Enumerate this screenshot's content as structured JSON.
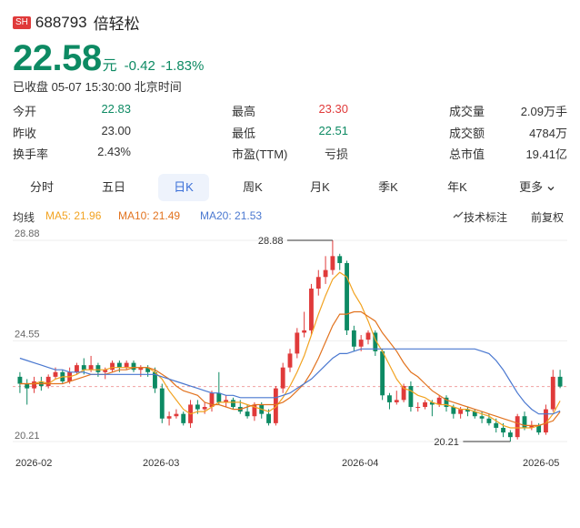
{
  "header": {
    "exchange": "SH",
    "code": "688793",
    "name": "倍轻松"
  },
  "quote": {
    "price": "22.58",
    "unit": "元",
    "change": "-0.42",
    "change_pct": "-1.83%",
    "status": "已收盘 05-07 15:30:00 北京时间",
    "colors": {
      "up": "#e03a3a",
      "down": "#0d8a63"
    }
  },
  "stats": [
    {
      "label": "今开",
      "value": "22.83",
      "tone": "green"
    },
    {
      "label": "最高",
      "value": "23.30",
      "tone": "red"
    },
    {
      "label": "成交量",
      "value": "2.09万手",
      "tone": "dark"
    },
    {
      "label": "昨收",
      "value": "23.00",
      "tone": "dark"
    },
    {
      "label": "最低",
      "value": "22.51",
      "tone": "green"
    },
    {
      "label": "成交额",
      "value": "4784万",
      "tone": "dark"
    },
    {
      "label": "换手率",
      "value": "2.43%",
      "tone": "dark"
    },
    {
      "label": "市盈(TTM)",
      "value": "亏损",
      "tone": "dark"
    },
    {
      "label": "总市值",
      "value": "19.41亿",
      "tone": "dark"
    }
  ],
  "tabs": [
    {
      "label": "分时",
      "active": false
    },
    {
      "label": "五日",
      "active": false
    },
    {
      "label": "日K",
      "active": true
    },
    {
      "label": "周K",
      "active": false
    },
    {
      "label": "月K",
      "active": false
    },
    {
      "label": "季K",
      "active": false
    },
    {
      "label": "年K",
      "active": false
    },
    {
      "label": "更多",
      "active": false,
      "icon": "chevron-down-icon"
    }
  ],
  "indicators": {
    "title": "均线",
    "ma5": "MA5: 21.96",
    "ma10": "MA10: 21.49",
    "ma20": "MA20: 21.53",
    "ma_colors": {
      "ma5": "#f2a321",
      "ma10": "#e2731f",
      "ma20": "#4a78d0"
    },
    "tech_label": "技术标注",
    "tech_icon": "pencil-icon",
    "adjust_label": "前复权"
  },
  "chart_data": {
    "type": "candlestick",
    "ylim": [
      20.21,
      28.88
    ],
    "y_ticks": [
      "28.88",
      "24.55",
      "20.21"
    ],
    "x_ticks": [
      "2026-02",
      "2026-03",
      "2026-04",
      "2026-05"
    ],
    "max_marker": "28.88",
    "min_marker": "20.21",
    "last_close_line": 22.58,
    "candles": [
      [
        23.0,
        22.7,
        23.2,
        22.3
      ],
      [
        22.7,
        22.5,
        22.9,
        21.8
      ],
      [
        22.5,
        22.8,
        23.0,
        22.3
      ],
      [
        22.8,
        22.6,
        23.0,
        22.4
      ],
      [
        22.6,
        23.0,
        23.1,
        22.5
      ],
      [
        23.0,
        23.2,
        23.4,
        22.9
      ],
      [
        23.2,
        22.8,
        23.3,
        22.7
      ],
      [
        22.8,
        23.2,
        23.4,
        22.7
      ],
      [
        23.2,
        23.5,
        23.6,
        23.1
      ],
      [
        23.5,
        23.3,
        23.8,
        23.1
      ],
      [
        23.3,
        23.5,
        23.9,
        23.2
      ],
      [
        23.5,
        23.2,
        23.6,
        23.0
      ],
      [
        23.2,
        23.3,
        23.4,
        22.9
      ],
      [
        23.3,
        23.6,
        23.7,
        23.2
      ],
      [
        23.6,
        23.4,
        23.7,
        23.2
      ],
      [
        23.4,
        23.6,
        23.7,
        23.3
      ],
      [
        23.6,
        23.3,
        23.7,
        23.2
      ],
      [
        23.3,
        23.4,
        23.5,
        23.0
      ],
      [
        23.4,
        23.2,
        23.5,
        23.0
      ],
      [
        23.2,
        22.5,
        23.4,
        22.3
      ],
      [
        22.5,
        21.2,
        22.7,
        21.0
      ],
      [
        21.2,
        21.3,
        21.5,
        20.9
      ],
      [
        21.3,
        21.4,
        21.6,
        21.2
      ],
      [
        21.4,
        21.0,
        21.5,
        20.9
      ],
      [
        21.0,
        21.8,
        22.0,
        20.8
      ],
      [
        21.8,
        21.6,
        22.0,
        21.4
      ],
      [
        21.6,
        21.7,
        21.9,
        21.4
      ],
      [
        21.7,
        22.3,
        22.4,
        21.5
      ],
      [
        22.3,
        21.9,
        23.2,
        21.8
      ],
      [
        21.9,
        22.0,
        22.2,
        21.7
      ],
      [
        22.0,
        21.7,
        22.1,
        21.6
      ],
      [
        21.7,
        21.5,
        22.0,
        21.4
      ],
      [
        21.5,
        21.3,
        21.8,
        21.2
      ],
      [
        21.3,
        21.8,
        21.9,
        21.1
      ],
      [
        21.8,
        21.4,
        21.9,
        21.2
      ],
      [
        21.4,
        21.0,
        21.6,
        20.9
      ],
      [
        21.0,
        22.5,
        22.6,
        20.9
      ],
      [
        22.5,
        23.4,
        23.6,
        22.3
      ],
      [
        23.4,
        24.0,
        24.2,
        23.2
      ],
      [
        24.0,
        24.9,
        25.1,
        23.8
      ],
      [
        24.9,
        25.0,
        25.8,
        24.7
      ],
      [
        25.0,
        26.8,
        27.0,
        24.8
      ],
      [
        26.8,
        27.3,
        27.6,
        26.5
      ],
      [
        27.3,
        27.6,
        28.2,
        27.0
      ],
      [
        27.6,
        28.2,
        28.88,
        27.4
      ],
      [
        28.2,
        27.9,
        28.3,
        27.6
      ],
      [
        27.9,
        25.0,
        28.0,
        24.8
      ],
      [
        25.0,
        24.3,
        25.2,
        24.1
      ],
      [
        24.3,
        24.6,
        24.8,
        24.1
      ],
      [
        24.6,
        24.9,
        25.0,
        24.4
      ],
      [
        24.9,
        24.1,
        25.0,
        23.9
      ],
      [
        24.1,
        22.2,
        24.2,
        22.0
      ],
      [
        22.2,
        21.9,
        22.3,
        21.6
      ],
      [
        21.9,
        22.0,
        22.4,
        21.8
      ],
      [
        22.0,
        22.6,
        22.7,
        21.9
      ],
      [
        22.6,
        21.7,
        22.8,
        21.5
      ],
      [
        21.7,
        21.7,
        21.9,
        21.5
      ],
      [
        21.7,
        21.9,
        22.0,
        21.6
      ],
      [
        21.9,
        21.8,
        22.0,
        21.3
      ],
      [
        21.8,
        22.1,
        22.2,
        21.7
      ],
      [
        22.1,
        21.7,
        22.2,
        21.5
      ],
      [
        21.7,
        21.4,
        21.8,
        21.2
      ],
      [
        21.4,
        21.6,
        21.7,
        21.2
      ],
      [
        21.6,
        21.5,
        21.7,
        21.3
      ],
      [
        21.5,
        21.3,
        21.6,
        21.2
      ],
      [
        21.3,
        21.2,
        21.5,
        21.0
      ],
      [
        21.2,
        21.0,
        21.4,
        20.9
      ],
      [
        21.0,
        20.8,
        21.2,
        20.6
      ],
      [
        20.8,
        20.6,
        21.0,
        20.4
      ],
      [
        20.6,
        20.4,
        20.7,
        20.21
      ],
      [
        20.4,
        21.3,
        21.4,
        20.3
      ],
      [
        21.3,
        20.8,
        21.5,
        20.7
      ],
      [
        20.8,
        20.9,
        21.1,
        20.7
      ],
      [
        20.9,
        20.6,
        21.0,
        20.5
      ],
      [
        20.6,
        21.6,
        21.8,
        20.5
      ],
      [
        21.6,
        23.0,
        23.3,
        21.5
      ],
      [
        23.0,
        22.58,
        23.3,
        22.51
      ]
    ],
    "series": [
      {
        "name": "MA5",
        "color": "#f2a321",
        "values": [
          22.7,
          22.7,
          22.7,
          22.8,
          22.7,
          22.9,
          23.0,
          23.0,
          23.1,
          23.3,
          23.3,
          23.3,
          23.3,
          23.4,
          23.4,
          23.4,
          23.4,
          23.4,
          23.4,
          23.2,
          22.9,
          22.4,
          22.0,
          21.6,
          21.4,
          21.5,
          21.5,
          21.7,
          21.9,
          21.9,
          21.9,
          21.9,
          21.8,
          21.7,
          21.6,
          21.5,
          21.7,
          22.1,
          22.6,
          23.2,
          23.9,
          24.8,
          25.7,
          26.5,
          27.2,
          27.5,
          27.3,
          26.6,
          26.1,
          25.4,
          24.6,
          24.1,
          23.5,
          22.9,
          22.5,
          22.4,
          22.2,
          22.1,
          21.9,
          21.8,
          21.8,
          21.7,
          21.6,
          21.6,
          21.5,
          21.4,
          21.3,
          21.1,
          20.9,
          20.8,
          20.8,
          20.8,
          20.8,
          20.9,
          21.0,
          21.4,
          21.96
        ]
      },
      {
        "name": "MA10",
        "color": "#e2731f",
        "values": [
          22.7,
          22.7,
          22.7,
          22.7,
          22.7,
          22.7,
          22.7,
          22.8,
          22.9,
          23.0,
          23.1,
          23.1,
          23.1,
          23.2,
          23.3,
          23.3,
          23.4,
          23.4,
          23.4,
          23.3,
          23.1,
          22.9,
          22.6,
          22.4,
          22.3,
          22.2,
          21.9,
          21.8,
          21.8,
          21.7,
          21.6,
          21.6,
          21.7,
          21.8,
          21.8,
          21.8,
          21.8,
          21.9,
          22.1,
          22.4,
          22.7,
          23.2,
          23.8,
          24.5,
          25.2,
          25.7,
          25.7,
          25.8,
          25.8,
          25.6,
          25.4,
          24.9,
          24.5,
          24.1,
          23.6,
          23.2,
          23.0,
          22.7,
          22.4,
          22.2,
          22.0,
          21.9,
          21.8,
          21.7,
          21.6,
          21.5,
          21.4,
          21.3,
          21.2,
          21.1,
          21.0,
          20.9,
          20.9,
          20.9,
          21.0,
          21.1,
          21.49
        ]
      },
      {
        "name": "MA20",
        "color": "#4a78d0",
        "values": [
          23.8,
          23.7,
          23.6,
          23.5,
          23.4,
          23.3,
          23.3,
          23.2,
          23.2,
          23.2,
          23.1,
          23.1,
          23.1,
          23.1,
          23.1,
          23.1,
          23.1,
          23.1,
          23.1,
          23.1,
          23.0,
          22.9,
          22.8,
          22.7,
          22.6,
          22.5,
          22.4,
          22.3,
          22.3,
          22.2,
          22.2,
          22.1,
          22.1,
          22.1,
          22.1,
          22.1,
          22.1,
          22.2,
          22.3,
          22.5,
          22.7,
          22.9,
          23.2,
          23.5,
          23.8,
          24.0,
          24.0,
          24.1,
          24.2,
          24.2,
          24.2,
          24.2,
          24.2,
          24.2,
          24.2,
          24.2,
          24.2,
          24.2,
          24.2,
          24.2,
          24.2,
          24.2,
          24.2,
          24.2,
          24.2,
          24.1,
          24.0,
          23.7,
          23.3,
          22.8,
          22.3,
          21.9,
          21.6,
          21.4,
          21.4,
          21.4,
          21.53
        ]
      }
    ]
  }
}
